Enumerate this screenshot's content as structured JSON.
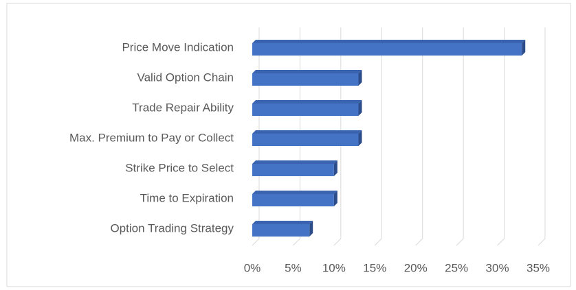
{
  "chart_data": {
    "type": "bar",
    "orientation": "horizontal",
    "categories": [
      "Price Move Indication",
      "Valid Option Chain",
      "Trade Repair Ability",
      "Max. Premium to Pay or Collect",
      "Strike Price to Select",
      "Time to Expiration",
      "Option Trading Strategy"
    ],
    "values": [
      33,
      13,
      13,
      13,
      10,
      10,
      7
    ],
    "color": "#4472c4",
    "xlim": [
      0,
      35
    ],
    "xticks": [
      {
        "value": 0,
        "label": "0%"
      },
      {
        "value": 5,
        "label": "5%"
      },
      {
        "value": 10,
        "label": "10%"
      },
      {
        "value": 15,
        "label": "15%"
      },
      {
        "value": 20,
        "label": "20%"
      },
      {
        "value": 25,
        "label": "25%"
      },
      {
        "value": 30,
        "label": "30%"
      },
      {
        "value": 35,
        "label": "35%"
      }
    ],
    "grid": true
  }
}
